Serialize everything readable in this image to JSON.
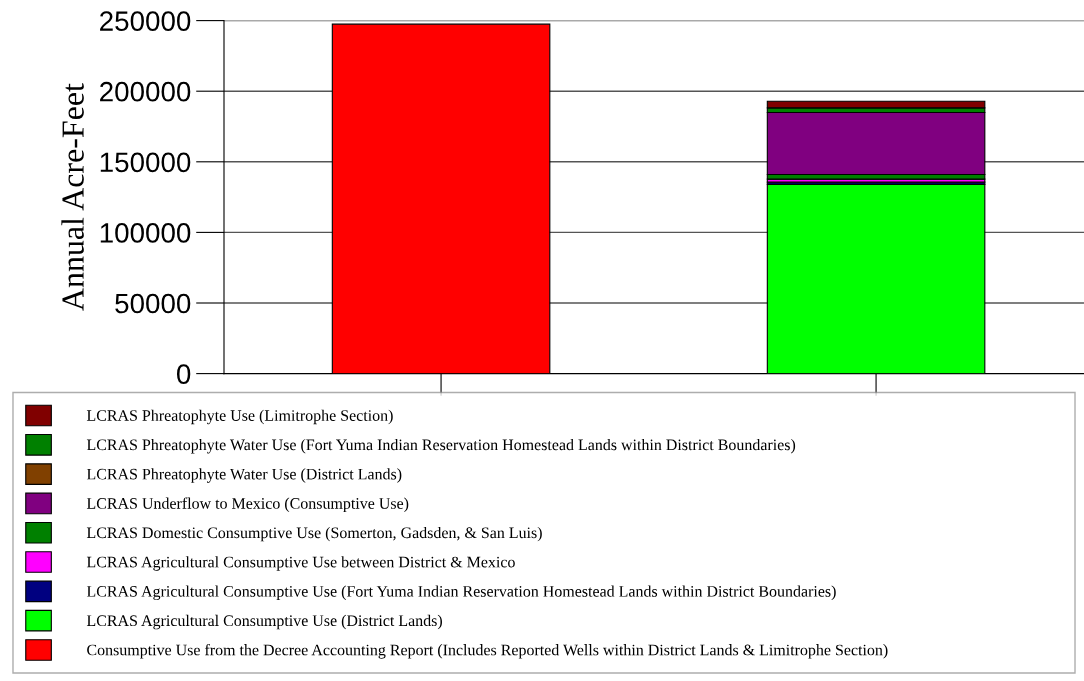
{
  "chart_data": {
    "type": "bar",
    "stacked": true,
    "ylabel": "Annual Acre-Feet",
    "categories": [
      null,
      null
    ],
    "series": [
      {
        "name": "Consumptive Use from the Decree Accounting Report (Includes Reported Wells within District Lands & Limitrophe Section)",
        "color": "#ff0000",
        "values": [
          247500,
          null
        ]
      },
      {
        "name": "LCRAS Agricultural Consumptive Use (District Lands)",
        "color": "#00ff00",
        "values": [
          null,
          134000
        ]
      },
      {
        "name": "LCRAS Agricultural Consumptive Use (Fort Yuma Indian Reservation Homestead Lands within District Boundaries)",
        "color": "#000080",
        "values": [
          null,
          1600
        ]
      },
      {
        "name": "LCRAS Agricultural Consumptive Use between District & Mexico",
        "color": "#ff00ff",
        "values": [
          null,
          2100
        ]
      },
      {
        "name": "LCRAS Domestic Consumptive Use (Somerton, Gadsden, & San Luis)",
        "color": "#008000",
        "values": [
          null,
          3300
        ]
      },
      {
        "name": "LCRAS Underflow to Mexico (Consumptive Use)",
        "color": "#800080",
        "values": [
          null,
          43900
        ]
      },
      {
        "name": "LCRAS Phreatophyte Water Use (District Lands)",
        "color": "#804000",
        "values": [
          null,
          0
        ]
      },
      {
        "name": "LCRAS Phreatophyte Water Use (Fort Yuma Indian Reservation Homestead Lands within District Boundaries)",
        "color": "#008000",
        "values": [
          null,
          3300
        ]
      },
      {
        "name": "LCRAS Phreatophyte Use (Limitrophe Section)",
        "color": "#800000",
        "values": [
          null,
          4700
        ]
      }
    ],
    "ylim": [
      0,
      250000
    ],
    "yticks": [
      0,
      50000,
      100000,
      150000,
      200000,
      250000
    ],
    "grid": "y",
    "legend": "bottom"
  }
}
